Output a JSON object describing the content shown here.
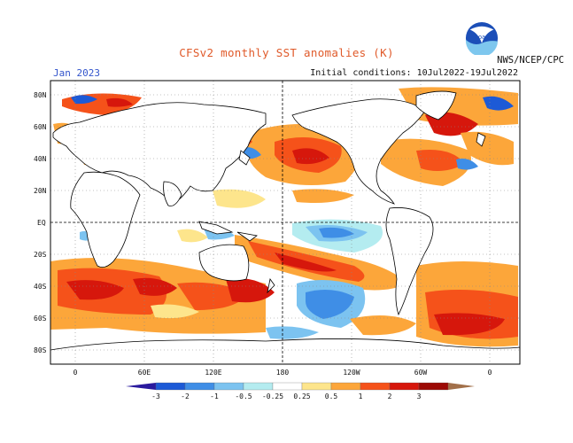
{
  "title": "CFSv2 monthly SST anomalies (K)",
  "month": "Jan 2023",
  "initial_conditions": "Initial conditions: 10Jul2022-19Jul2022",
  "agency": "NWS/NCEP/CPC",
  "logo_text": "noaa",
  "lat_labels": [
    "80N",
    "60N",
    "40N",
    "20N",
    "EQ",
    "20S",
    "40S",
    "60S",
    "80S"
  ],
  "lon_labels": [
    "0",
    "60E",
    "120E",
    "180",
    "120W",
    "60W",
    "0"
  ],
  "colorbar": {
    "ticks": [
      "-3",
      "-2",
      "-1",
      "-0.5",
      "-0.25",
      "0.25",
      "0.5",
      "1",
      "2",
      "3"
    ],
    "colors": [
      "#2a1a9e",
      "#1d5ad6",
      "#3f8ee6",
      "#7cc3f0",
      "#b4ecf0",
      "#ffffff",
      "#fde58c",
      "#fca63a",
      "#f5521a",
      "#d6170c",
      "#9c0a05",
      "#a2704a"
    ]
  },
  "colors": {
    "title": "#e05a2a",
    "month": "#3355cc",
    "land": "#ffffff",
    "coast": "#000000"
  }
}
